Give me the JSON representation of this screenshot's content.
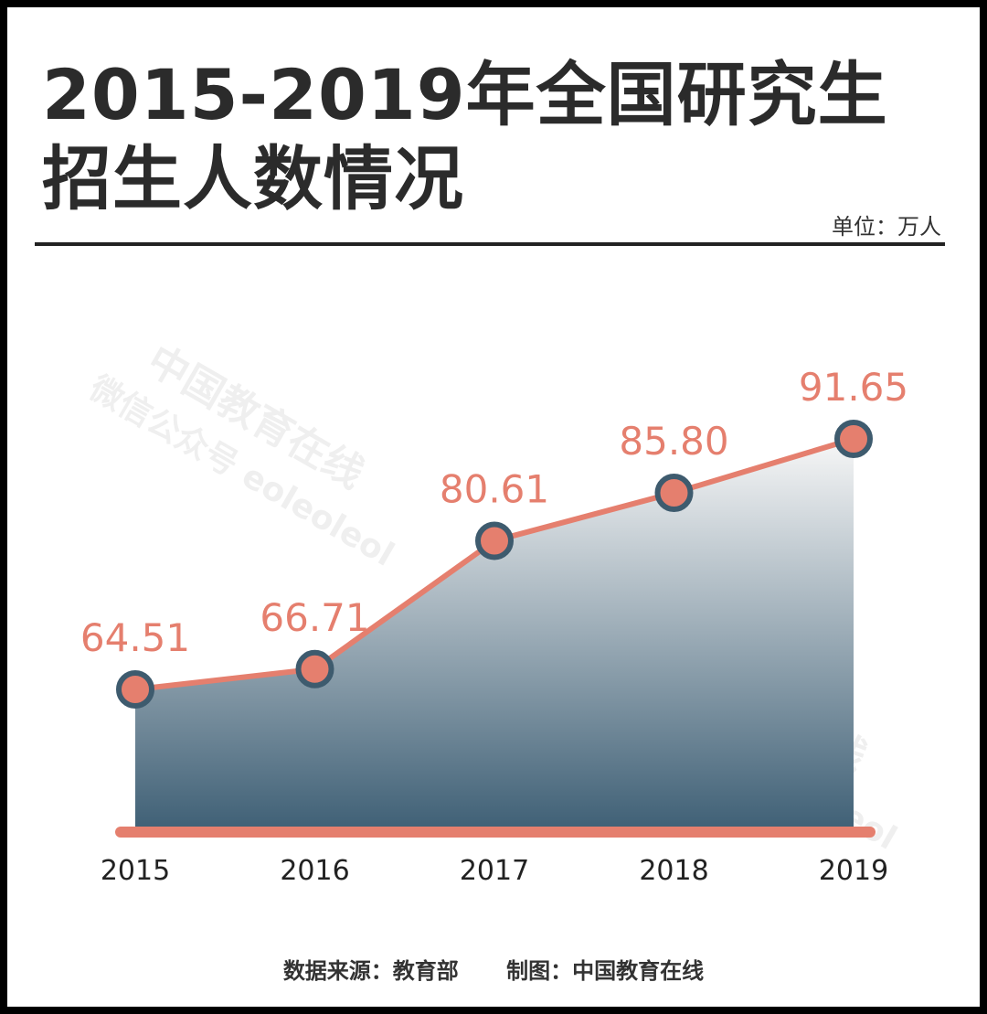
{
  "title_line1": "2015-2019年全国研究生",
  "title_line2": "招生人数情况",
  "unit": "单位：万人",
  "footer": {
    "source": "数据来源：教育部",
    "credit": "制图：中国教育在线"
  },
  "watermark": {
    "name": "中国教育在线",
    "sub": "微信公众号 eoleoleol"
  },
  "colors": {
    "line": "#e57f6e",
    "marker_fill": "#e57f6e",
    "marker_stroke": "#3e5b6e",
    "area_top": "#f7f7f7",
    "area_bottom": "#3e5f75",
    "baseline": "#e57f6e",
    "label": "#e57f6e"
  },
  "chart_data": {
    "type": "area",
    "categories": [
      "2015",
      "2016",
      "2017",
      "2018",
      "2019"
    ],
    "series": [
      {
        "values": [
          64.51,
          66.71,
          80.61,
          85.8,
          91.65
        ]
      }
    ],
    "data_labels": [
      "64.51",
      "66.71",
      "80.61",
      "85.80",
      "91.65"
    ],
    "xlabel": "",
    "ylabel": "",
    "grid": false
  }
}
